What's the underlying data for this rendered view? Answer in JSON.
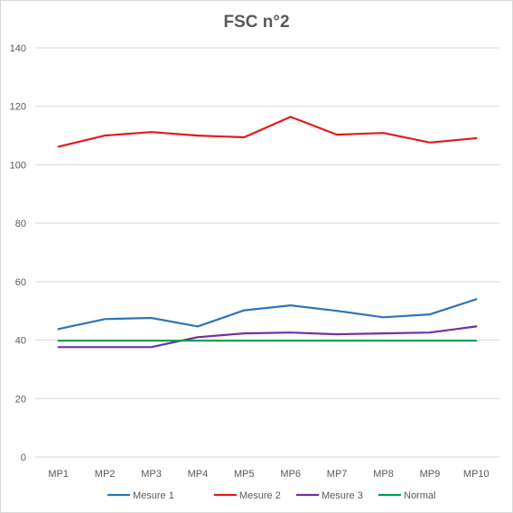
{
  "chart_data": {
    "type": "line",
    "title": "FSC n°2",
    "xlabel": "",
    "ylabel": "",
    "categories": [
      "MP1",
      "MP2",
      "MP3",
      "MP4",
      "MP5",
      "MP6",
      "MP7",
      "MP8",
      "MP9",
      "MP10"
    ],
    "ylim": [
      0,
      140
    ],
    "yticks": [
      0,
      20,
      40,
      60,
      80,
      100,
      120,
      140
    ],
    "grid": true,
    "legend_position": "bottom",
    "series": [
      {
        "name": "Mesure 1",
        "color": "#2E75B6",
        "values": [
          43.8,
          47.2,
          47.6,
          44.7,
          50.2,
          51.9,
          50.0,
          47.8,
          48.8,
          54.0
        ]
      },
      {
        "name": "Mesure 2",
        "color": "#E31A1C",
        "values": [
          106.2,
          110.0,
          111.2,
          110.0,
          109.4,
          116.4,
          110.3,
          110.9,
          107.6,
          109.1
        ]
      },
      {
        "name": "Mesure 3",
        "color": "#7030A0",
        "values": [
          37.6,
          37.6,
          37.6,
          41.0,
          42.3,
          42.6,
          42.0,
          42.3,
          42.6,
          44.7
        ]
      },
      {
        "name": "Normal",
        "color": "#00A050",
        "values": [
          39.8,
          39.8,
          39.8,
          39.8,
          39.8,
          39.8,
          39.8,
          39.8,
          39.8,
          39.8
        ]
      }
    ]
  }
}
